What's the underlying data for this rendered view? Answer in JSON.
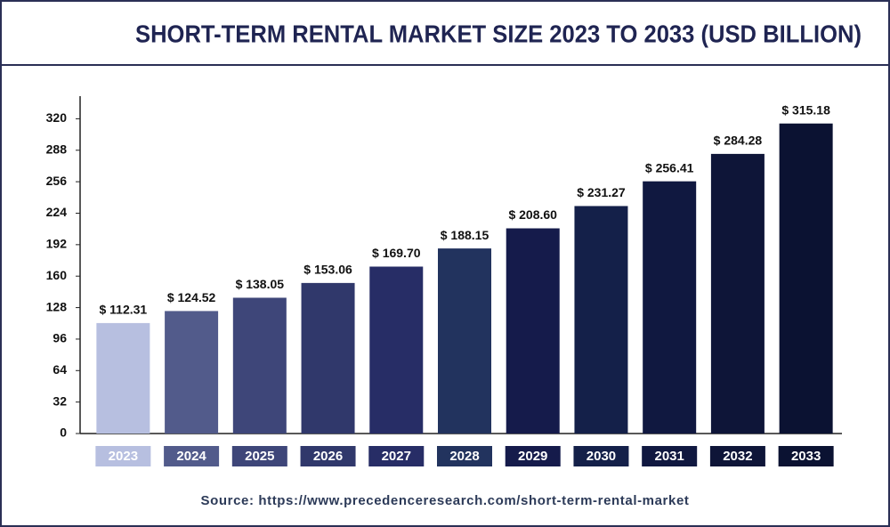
{
  "chart_data": {
    "type": "bar",
    "title": "SHORT-TERM RENTAL MARKET SIZE 2023 TO 2033 (USD BILLION)",
    "categories": [
      "2023",
      "2024",
      "2025",
      "2026",
      "2027",
      "2028",
      "2029",
      "2030",
      "2031",
      "2032",
      "2033"
    ],
    "values": [
      112.31,
      124.52,
      138.05,
      153.06,
      169.7,
      188.15,
      208.6,
      231.27,
      256.41,
      284.28,
      315.18
    ],
    "value_labels": [
      "$ 112.31",
      "$ 124.52",
      "$ 138.05",
      "$ 153.06",
      "$ 169.70",
      "$ 188.15",
      "$ 208.60",
      "$ 231.27",
      "$ 256.41",
      "$ 284.28",
      "$ 315.18"
    ],
    "colors": [
      "#b7bfe0",
      "#525b8b",
      "#3e4679",
      "#30386b",
      "#272d66",
      "#22335e",
      "#151b4b",
      "#142049",
      "#101840",
      "#0e1538",
      "#0b1232"
    ],
    "ylim": [
      0,
      343
    ],
    "yticks": [
      0,
      32,
      64,
      96,
      128,
      160,
      192,
      224,
      256,
      288,
      320
    ],
    "grid": false,
    "source": "Source: https://www.precedenceresearch.com/short-term-rental-market"
  }
}
